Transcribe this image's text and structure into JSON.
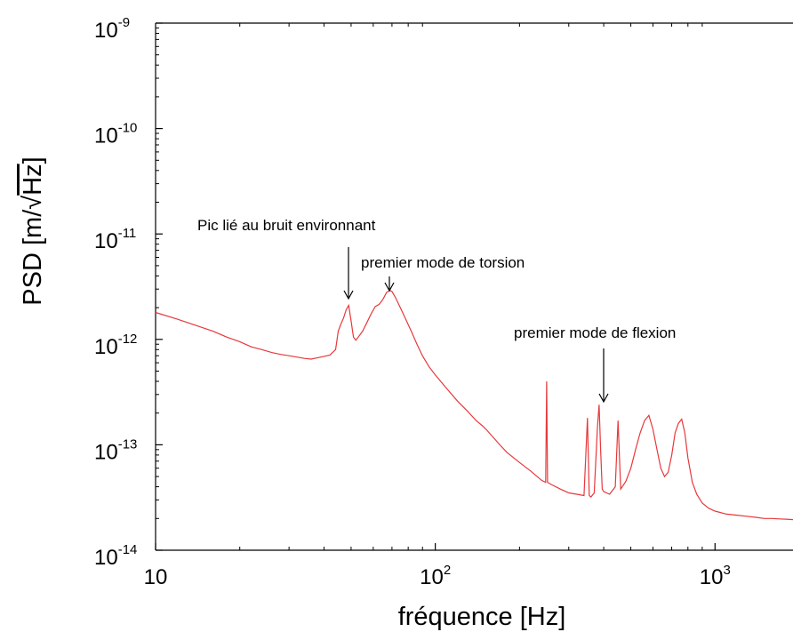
{
  "chart_data": {
    "type": "line",
    "xlabel": "fréquence [Hz]",
    "ylabel_prefix": "PSD [m/",
    "ylabel_root": "Hz",
    "ylabel_suffix": "]",
    "x_scale": "log",
    "y_scale": "log",
    "xlim": [
      10,
      1900
    ],
    "ylim": [
      1e-14,
      1e-09
    ],
    "grid": false,
    "x_ticks": [
      {
        "value": 10,
        "base": "10",
        "exp": ""
      },
      {
        "value": 100,
        "base": "10",
        "exp": "2"
      },
      {
        "value": 1000,
        "base": "10",
        "exp": "3"
      }
    ],
    "y_ticks": [
      {
        "value": 1e-09,
        "base": "10",
        "exp": "-9"
      },
      {
        "value": 1e-10,
        "base": "10",
        "exp": "-10"
      },
      {
        "value": 1e-11,
        "base": "10",
        "exp": "-11"
      },
      {
        "value": 1e-12,
        "base": "10",
        "exp": "-12"
      },
      {
        "value": 1e-13,
        "base": "10",
        "exp": "-13"
      },
      {
        "value": 1e-14,
        "base": "10",
        "exp": "-14"
      }
    ],
    "series": [
      {
        "color": "#e8383b",
        "x": [
          10,
          12,
          14,
          16,
          18,
          20,
          22,
          24,
          26,
          28,
          30,
          32,
          34,
          36,
          38,
          40,
          42,
          44,
          45,
          46,
          47,
          48,
          49,
          50,
          51,
          52,
          53,
          55,
          57,
          59,
          61,
          63,
          65,
          67,
          69,
          70,
          72,
          75,
          78,
          82,
          86,
          90,
          95,
          100,
          110,
          120,
          130,
          140,
          148,
          150,
          152,
          160,
          170,
          180,
          200,
          220,
          240,
          248,
          250,
          252,
          260,
          280,
          300,
          320,
          340,
          350,
          355,
          360,
          370,
          380,
          385,
          390,
          395,
          400,
          420,
          440,
          450,
          460,
          480,
          500,
          520,
          540,
          560,
          580,
          600,
          620,
          640,
          660,
          680,
          700,
          720,
          740,
          760,
          780,
          800,
          830,
          860,
          900,
          950,
          1000,
          1100,
          1200,
          1300,
          1400,
          1500,
          1600,
          1700,
          1800,
          1900
        ],
        "y": [
          1.8e-12,
          1.55e-12,
          1.35e-12,
          1.2e-12,
          1.05e-12,
          9.5e-13,
          8.5e-13,
          8e-13,
          7.5e-13,
          7.2e-13,
          7e-13,
          6.8e-13,
          6.6e-13,
          6.5e-13,
          6.7e-13,
          6.9e-13,
          7.1e-13,
          8e-13,
          1.2e-12,
          1.4e-12,
          1.6e-12,
          1.9e-12,
          2.1e-12,
          1.5e-12,
          1.05e-12,
          9.8e-13,
          1.05e-12,
          1.2e-12,
          1.45e-12,
          1.75e-12,
          2.05e-12,
          2.15e-12,
          2.4e-12,
          2.8e-12,
          2.9e-12,
          2.85e-12,
          2.5e-12,
          2e-12,
          1.6e-12,
          1.2e-12,
          9e-13,
          7e-13,
          5.5e-13,
          4.6e-13,
          3.4e-13,
          2.6e-13,
          2.1e-13,
          1.7e-13,
          1.5e-13,
          1.45e-13,
          1.4e-13,
          1.2e-13,
          1e-13,
          8.5e-14,
          6.8e-14,
          5.6e-14,
          4.6e-14,
          4.4e-14,
          4e-13,
          4.4e-14,
          4.2e-14,
          3.8e-14,
          3.5e-14,
          3.4e-14,
          3.3e-14,
          1.8e-13,
          3.3e-14,
          3.2e-14,
          3.5e-14,
          1.5e-13,
          2.4e-13,
          9e-14,
          3.8e-14,
          3.6e-14,
          3.4e-14,
          4e-14,
          1.7e-13,
          3.8e-14,
          4.5e-14,
          6e-14,
          9e-14,
          1.3e-13,
          1.7e-13,
          1.9e-13,
          1.4e-13,
          9e-14,
          6e-14,
          5e-14,
          5.5e-14,
          8e-14,
          1.3e-13,
          1.6e-13,
          1.75e-13,
          1.3e-13,
          7.5e-14,
          4.4e-14,
          3.4e-14,
          2.8e-14,
          2.5e-14,
          2.35e-14,
          2.2e-14,
          2.15e-14,
          2.1e-14,
          2.05e-14,
          2e-14,
          2e-14,
          1.98e-14,
          1.97e-14,
          1.95e-14
        ]
      }
    ],
    "annotations": [
      {
        "text": "Pic lié au bruit environnant",
        "x": 48.5,
        "y": 2e-12
      },
      {
        "text": "premier mode de torsion",
        "x": 68,
        "y": 2.9e-12
      },
      {
        "text": "premier mode de flexion",
        "x": 385,
        "y": 2.4e-13
      }
    ]
  }
}
